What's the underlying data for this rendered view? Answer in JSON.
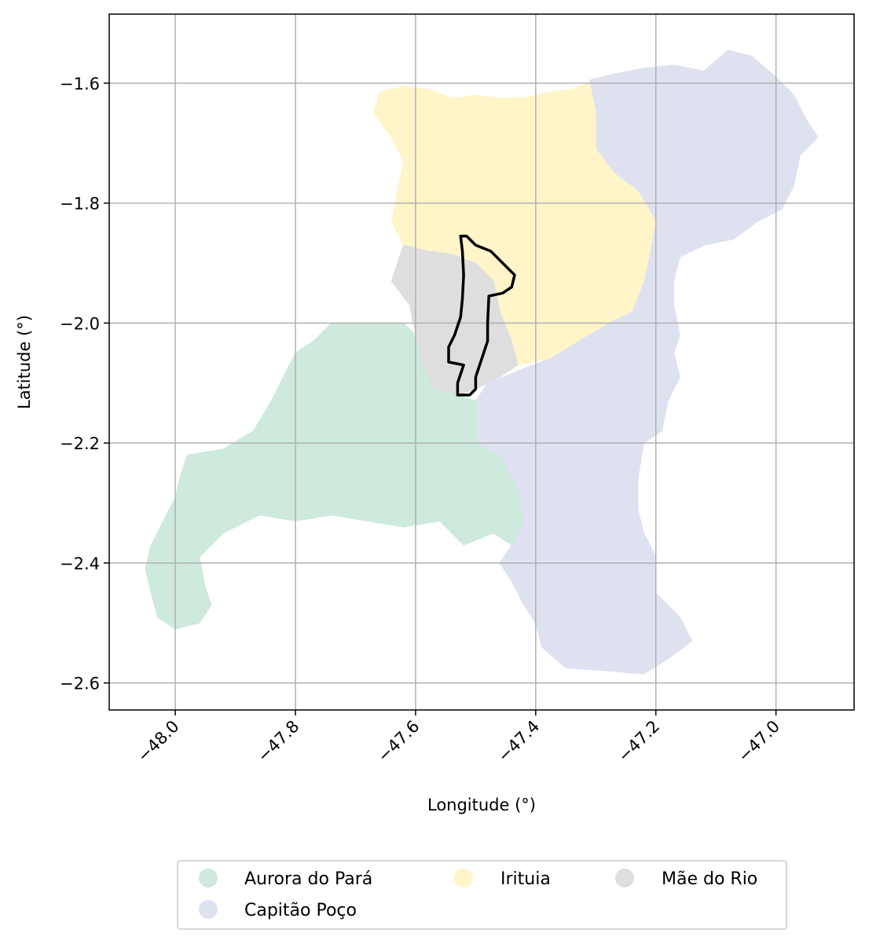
{
  "map": {
    "type": "choropleth",
    "xlabel": "Longitude (°)",
    "ylabel": "Latitude (°)",
    "xlim": [
      -48.11,
      -46.87
    ],
    "ylim": [
      -2.645,
      -1.485
    ],
    "xticks": [
      {
        "value": -48.0,
        "label": "−48.0"
      },
      {
        "value": -47.8,
        "label": "−47.8"
      },
      {
        "value": -47.6,
        "label": "−47.6"
      },
      {
        "value": -47.4,
        "label": "−47.4"
      },
      {
        "value": -47.2,
        "label": "−47.2"
      },
      {
        "value": -47.0,
        "label": "−47.0"
      }
    ],
    "yticks": [
      {
        "value": -1.6,
        "label": "−1.6"
      },
      {
        "value": -1.8,
        "label": "−1.8"
      },
      {
        "value": -2.0,
        "label": "−2.0"
      },
      {
        "value": -2.2,
        "label": "−2.2"
      },
      {
        "value": -2.4,
        "label": "−2.4"
      },
      {
        "value": -2.6,
        "label": "−2.6"
      }
    ],
    "grid": true,
    "legend_position": "below",
    "legend": [
      {
        "label": "Aurora do Pará",
        "color": "#cdeadc"
      },
      {
        "label": "Irituia",
        "color": "#fff5c9"
      },
      {
        "label": "Mãe do Rio",
        "color": "#dedede"
      },
      {
        "label": "Capitão Poço",
        "color": "#dee2f0"
      }
    ],
    "regions": [
      {
        "name": "Capitão Poço",
        "color": "#dee2f0",
        "coords": [
          [
            -47.31,
            -1.595
          ],
          [
            -47.27,
            -1.585
          ],
          [
            -47.22,
            -1.575
          ],
          [
            -47.17,
            -1.57
          ],
          [
            -47.12,
            -1.58
          ],
          [
            -47.08,
            -1.545
          ],
          [
            -47.04,
            -1.555
          ],
          [
            -47.0,
            -1.59
          ],
          [
            -46.97,
            -1.62
          ],
          [
            -46.95,
            -1.66
          ],
          [
            -46.93,
            -1.69
          ],
          [
            -46.96,
            -1.72
          ],
          [
            -46.97,
            -1.77
          ],
          [
            -46.99,
            -1.81
          ],
          [
            -47.03,
            -1.83
          ],
          [
            -47.07,
            -1.86
          ],
          [
            -47.12,
            -1.87
          ],
          [
            -47.16,
            -1.89
          ],
          [
            -47.17,
            -1.93
          ],
          [
            -47.17,
            -1.97
          ],
          [
            -47.16,
            -2.02
          ],
          [
            -47.17,
            -2.05
          ],
          [
            -47.16,
            -2.09
          ],
          [
            -47.18,
            -2.13
          ],
          [
            -47.19,
            -2.18
          ],
          [
            -47.22,
            -2.2
          ],
          [
            -47.23,
            -2.26
          ],
          [
            -47.23,
            -2.31
          ],
          [
            -47.22,
            -2.35
          ],
          [
            -47.2,
            -2.39
          ],
          [
            -47.2,
            -2.45
          ],
          [
            -47.16,
            -2.49
          ],
          [
            -47.14,
            -2.53
          ],
          [
            -47.18,
            -2.56
          ],
          [
            -47.22,
            -2.585
          ],
          [
            -47.28,
            -2.58
          ],
          [
            -47.35,
            -2.575
          ],
          [
            -47.39,
            -2.54
          ],
          [
            -47.4,
            -2.5
          ],
          [
            -47.42,
            -2.47
          ],
          [
            -47.44,
            -2.43
          ],
          [
            -47.46,
            -2.4
          ],
          [
            -47.44,
            -2.37
          ],
          [
            -47.42,
            -2.33
          ],
          [
            -47.43,
            -2.28
          ],
          [
            -47.46,
            -2.22
          ],
          [
            -47.5,
            -2.2
          ],
          [
            -47.52,
            -2.18
          ],
          [
            -47.5,
            -2.13
          ],
          [
            -47.48,
            -2.1
          ],
          [
            -47.43,
            -2.08
          ],
          [
            -47.38,
            -2.06
          ],
          [
            -47.33,
            -2.03
          ],
          [
            -47.28,
            -2.0
          ],
          [
            -47.24,
            -1.98
          ],
          [
            -47.22,
            -1.93
          ],
          [
            -47.21,
            -1.88
          ],
          [
            -47.2,
            -1.83
          ],
          [
            -47.23,
            -1.78
          ],
          [
            -47.27,
            -1.75
          ],
          [
            -47.3,
            -1.71
          ],
          [
            -47.3,
            -1.65
          ]
        ]
      },
      {
        "name": "Irituia",
        "color": "#fff5c9",
        "coords": [
          [
            -47.66,
            -1.615
          ],
          [
            -47.62,
            -1.605
          ],
          [
            -47.58,
            -1.61
          ],
          [
            -47.54,
            -1.625
          ],
          [
            -47.5,
            -1.62
          ],
          [
            -47.46,
            -1.625
          ],
          [
            -47.42,
            -1.625
          ],
          [
            -47.38,
            -1.615
          ],
          [
            -47.34,
            -1.61
          ],
          [
            -47.31,
            -1.6
          ],
          [
            -47.3,
            -1.65
          ],
          [
            -47.3,
            -1.71
          ],
          [
            -47.27,
            -1.75
          ],
          [
            -47.23,
            -1.78
          ],
          [
            -47.2,
            -1.83
          ],
          [
            -47.21,
            -1.88
          ],
          [
            -47.22,
            -1.93
          ],
          [
            -47.24,
            -1.98
          ],
          [
            -47.28,
            -2.0
          ],
          [
            -47.33,
            -2.03
          ],
          [
            -47.38,
            -2.06
          ],
          [
            -47.43,
            -2.07
          ],
          [
            -47.44,
            -2.03
          ],
          [
            -47.46,
            -1.98
          ],
          [
            -47.47,
            -1.93
          ],
          [
            -47.5,
            -1.9
          ],
          [
            -47.54,
            -1.885
          ],
          [
            -47.58,
            -1.88
          ],
          [
            -47.62,
            -1.87
          ],
          [
            -47.64,
            -1.83
          ],
          [
            -47.63,
            -1.78
          ],
          [
            -47.62,
            -1.73
          ],
          [
            -47.64,
            -1.69
          ],
          [
            -47.67,
            -1.65
          ]
        ]
      },
      {
        "name": "Mãe do Rio",
        "color": "#dedede",
        "coords": [
          [
            -47.62,
            -1.87
          ],
          [
            -47.58,
            -1.88
          ],
          [
            -47.54,
            -1.885
          ],
          [
            -47.5,
            -1.9
          ],
          [
            -47.47,
            -1.93
          ],
          [
            -47.46,
            -1.98
          ],
          [
            -47.44,
            -2.03
          ],
          [
            -47.43,
            -2.07
          ],
          [
            -47.46,
            -2.09
          ],
          [
            -47.5,
            -2.11
          ],
          [
            -47.53,
            -2.12
          ],
          [
            -47.57,
            -2.11
          ],
          [
            -47.59,
            -2.07
          ],
          [
            -47.6,
            -2.02
          ],
          [
            -47.61,
            -1.97
          ],
          [
            -47.64,
            -1.93
          ],
          [
            -47.63,
            -1.9
          ]
        ]
      },
      {
        "name": "Aurora do Pará",
        "color": "#cdeadc",
        "coords": [
          [
            -47.74,
            -2.0
          ],
          [
            -47.68,
            -2.0
          ],
          [
            -47.62,
            -2.0
          ],
          [
            -47.6,
            -2.02
          ],
          [
            -47.59,
            -2.07
          ],
          [
            -47.57,
            -2.11
          ],
          [
            -47.53,
            -2.12
          ],
          [
            -47.5,
            -2.13
          ],
          [
            -47.5,
            -2.2
          ],
          [
            -47.46,
            -2.22
          ],
          [
            -47.43,
            -2.28
          ],
          [
            -47.42,
            -2.33
          ],
          [
            -47.44,
            -2.37
          ],
          [
            -47.47,
            -2.35
          ],
          [
            -47.52,
            -2.37
          ],
          [
            -47.56,
            -2.33
          ],
          [
            -47.62,
            -2.34
          ],
          [
            -47.68,
            -2.33
          ],
          [
            -47.74,
            -2.32
          ],
          [
            -47.8,
            -2.33
          ],
          [
            -47.86,
            -2.32
          ],
          [
            -47.92,
            -2.35
          ],
          [
            -47.96,
            -2.39
          ],
          [
            -47.95,
            -2.44
          ],
          [
            -47.94,
            -2.47
          ],
          [
            -47.96,
            -2.5
          ],
          [
            -48.0,
            -2.51
          ],
          [
            -48.03,
            -2.49
          ],
          [
            -48.04,
            -2.45
          ],
          [
            -48.05,
            -2.41
          ],
          [
            -48.04,
            -2.37
          ],
          [
            -48.02,
            -2.33
          ],
          [
            -48.0,
            -2.29
          ],
          [
            -47.99,
            -2.25
          ],
          [
            -47.98,
            -2.22
          ],
          [
            -47.92,
            -2.21
          ],
          [
            -47.87,
            -2.18
          ],
          [
            -47.84,
            -2.13
          ],
          [
            -47.82,
            -2.09
          ],
          [
            -47.8,
            -2.05
          ],
          [
            -47.77,
            -2.03
          ]
        ]
      }
    ],
    "highlight_boundary": [
      [
        -47.525,
        -1.855
      ],
      [
        -47.515,
        -1.855
      ],
      [
        -47.5,
        -1.87
      ],
      [
        -47.475,
        -1.88
      ],
      [
        -47.455,
        -1.9
      ],
      [
        -47.435,
        -1.92
      ],
      [
        -47.44,
        -1.94
      ],
      [
        -47.455,
        -1.95
      ],
      [
        -47.478,
        -1.955
      ],
      [
        -47.48,
        -2.0
      ],
      [
        -47.48,
        -2.03
      ],
      [
        -47.49,
        -2.06
      ],
      [
        -47.5,
        -2.09
      ],
      [
        -47.5,
        -2.11
      ],
      [
        -47.51,
        -2.12
      ],
      [
        -47.53,
        -2.12
      ],
      [
        -47.53,
        -2.1
      ],
      [
        -47.52,
        -2.07
      ],
      [
        -47.545,
        -2.065
      ],
      [
        -47.545,
        -2.04
      ],
      [
        -47.535,
        -2.02
      ],
      [
        -47.525,
        -1.99
      ],
      [
        -47.522,
        -1.96
      ],
      [
        -47.52,
        -1.92
      ],
      [
        -47.522,
        -1.88
      ]
    ]
  }
}
